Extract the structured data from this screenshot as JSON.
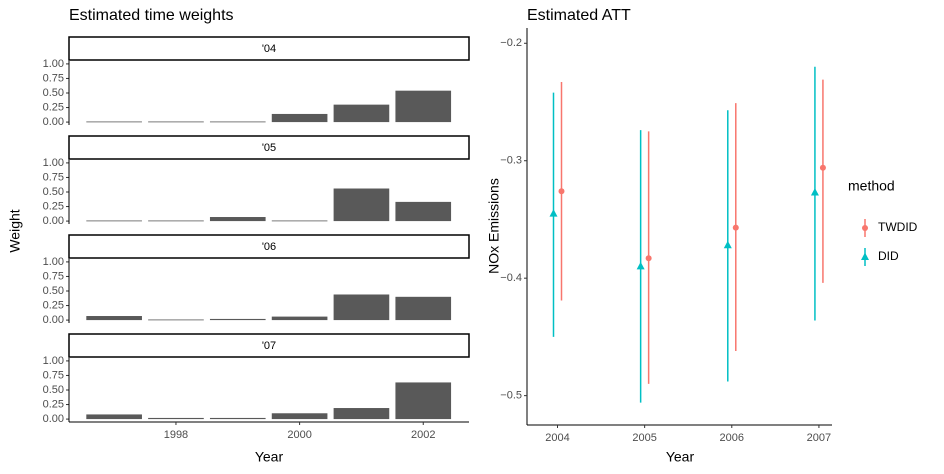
{
  "chart_data": [
    {
      "type": "bar",
      "title": "Estimated time weights",
      "x_label": "Year",
      "y_label": "Weight",
      "x": [
        1997,
        1998,
        1999,
        2000,
        2001,
        2002
      ],
      "xlim": [
        1996.27,
        2002.74
      ],
      "xticks": [
        1998,
        2000,
        2002
      ],
      "ylim": [
        -0.05,
        1.05
      ],
      "yticks": [
        {
          "value": 0,
          "label": "0.00"
        },
        {
          "value": 0.25,
          "label": "0.25"
        },
        {
          "value": 0.5,
          "label": "0.50"
        },
        {
          "value": 0.75,
          "label": "0.75"
        },
        {
          "value": 1,
          "label": "1.00"
        }
      ],
      "color": "#595959",
      "facets": [
        {
          "label": "'04",
          "values": [
            0.01,
            0.01,
            0.01,
            0.14,
            0.3,
            0.54
          ]
        },
        {
          "label": "'05",
          "values": [
            0.01,
            0.01,
            0.07,
            0.01,
            0.56,
            0.33
          ]
        },
        {
          "label": "'06",
          "values": [
            0.07,
            0.01,
            0.02,
            0.06,
            0.44,
            0.4
          ]
        },
        {
          "label": "'07",
          "values": [
            0.08,
            0.02,
            0.02,
            0.1,
            0.19,
            0.63
          ]
        }
      ]
    },
    {
      "type": "pointrange",
      "title": "Estimated ATT",
      "x_label": "Year",
      "y_label": "NOx Emissions",
      "x": [
        2004,
        2005,
        2006,
        2007
      ],
      "xlim": [
        2003.65,
        2007.15
      ],
      "xticks": [
        2004,
        2005,
        2006,
        2007
      ],
      "ylim": [
        -0.525,
        -0.187
      ],
      "yticks": [
        {
          "value": -0.5,
          "label": "−0.5"
        },
        {
          "value": -0.4,
          "label": "−0.4"
        },
        {
          "value": -0.3,
          "label": "−0.3"
        },
        {
          "value": -0.2,
          "label": "−0.2"
        }
      ],
      "legend_title": "method",
      "legend": "right",
      "series": [
        {
          "name": "TWDID",
          "color": "#F8766D",
          "marker": "circle",
          "values": [
            -0.326,
            -0.383,
            -0.357,
            -0.306
          ],
          "lower": [
            -0.419,
            -0.49,
            -0.462,
            -0.404
          ],
          "upper": [
            -0.233,
            -0.275,
            -0.251,
            -0.231
          ]
        },
        {
          "name": "DID",
          "color": "#00BFC4",
          "marker": "triangle",
          "values": [
            -0.345,
            -0.39,
            -0.372,
            -0.327
          ],
          "lower": [
            -0.45,
            -0.506,
            -0.488,
            -0.436
          ],
          "upper": [
            -0.242,
            -0.274,
            -0.257,
            -0.22
          ]
        }
      ]
    }
  ]
}
